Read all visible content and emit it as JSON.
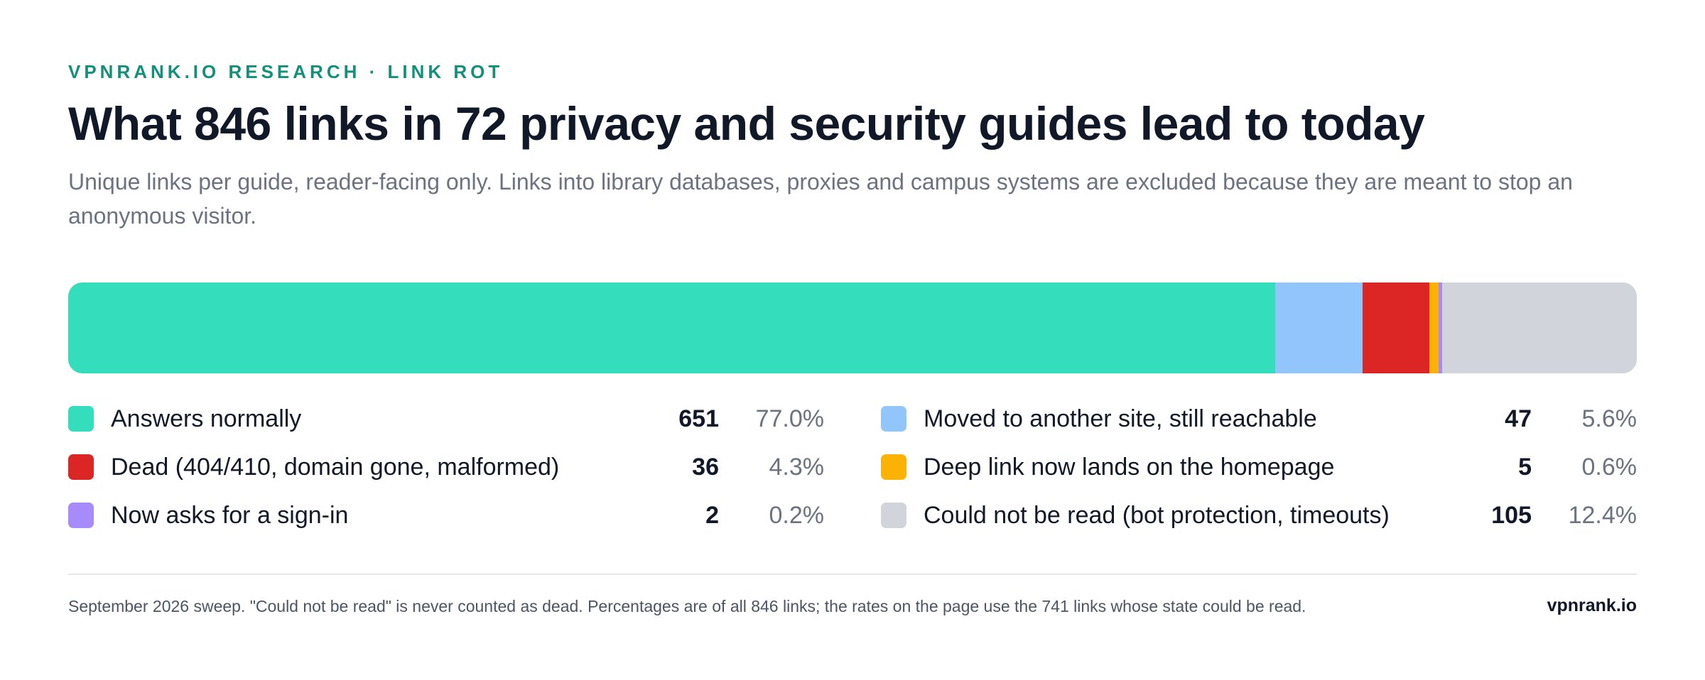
{
  "eyebrow": "VPNRANK.IO RESEARCH · LINK ROT",
  "title": "What 846 links in 72 privacy and security guides lead to today",
  "subtitle": "Unique links per guide, reader-facing only. Links into library databases, proxies and campus systems are excluded because they are meant to stop an anonymous visitor.",
  "footnote": "September 2026 sweep. \"Could not be read\" is never counted as dead. Percentages are of all 846 links; the rates on the page use the 741 links whose state could be read.",
  "brand": "vpnrank.io",
  "chart_data": {
    "type": "bar",
    "orientation": "horizontal-stacked",
    "total": 846,
    "categories": [
      "Answers normally",
      "Moved to another site, still reachable",
      "Dead (404/410, domain gone, malformed)",
      "Deep link now lands on the homepage",
      "Now asks for a sign-in",
      "Could not be read (bot protection, timeouts)"
    ],
    "values": [
      651,
      47,
      36,
      5,
      2,
      105
    ],
    "percent_labels": [
      "77.0%",
      "5.6%",
      "4.3%",
      "0.6%",
      "0.2%",
      "12.4%"
    ],
    "colors": [
      "#34ddbb",
      "#93c5fd",
      "#dc2626",
      "#fbb204",
      "#a78bfa",
      "#d1d5db"
    ],
    "legend": "below, two columns"
  }
}
